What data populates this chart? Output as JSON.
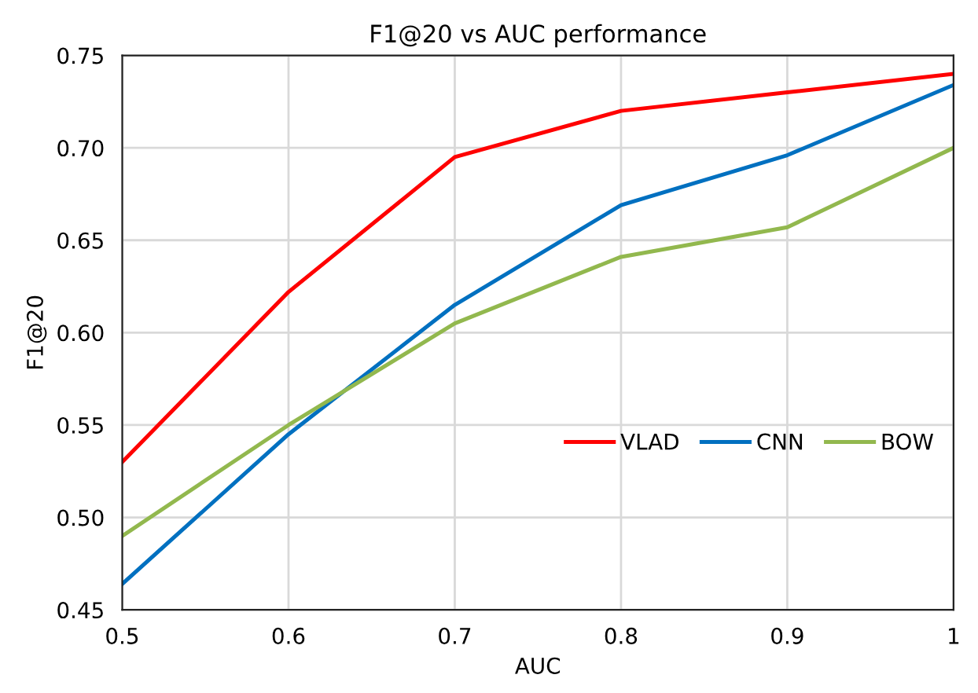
{
  "chart_data": {
    "type": "line",
    "title": "F1@20 vs AUC performance",
    "xlabel": "AUC",
    "ylabel": "F1@20",
    "x": [
      0.5,
      0.6,
      0.7,
      0.8,
      0.9,
      1
    ],
    "series": [
      {
        "name": "VLAD",
        "color": "#ff0000",
        "values": [
          0.53,
          0.622,
          0.695,
          0.72,
          0.73,
          0.74
        ]
      },
      {
        "name": "CNN",
        "color": "#0070c0",
        "values": [
          0.464,
          0.545,
          0.615,
          0.669,
          0.696,
          0.734
        ]
      },
      {
        "name": "BOW",
        "color": "#92b84e",
        "values": [
          0.49,
          0.55,
          0.605,
          0.641,
          0.657,
          0.7
        ]
      }
    ],
    "xlim": [
      0.5,
      1
    ],
    "xticks": [
      0.5,
      0.6,
      0.7,
      0.8,
      0.9,
      1
    ],
    "ylim": [
      0.45,
      0.75
    ],
    "yticks": [
      0.45,
      {
        "value": 0.5,
        "label": "0.50"
      },
      0.55,
      {
        "value": 0.6,
        "label": "0.60"
      },
      0.65,
      {
        "value": 0.7,
        "label": "0.70"
      },
      0.75
    ],
    "grid": true,
    "legend": "right",
    "marker": "none",
    "line_style": "solid"
  }
}
